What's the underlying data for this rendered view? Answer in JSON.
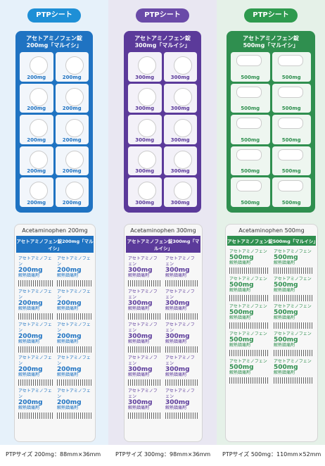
{
  "columns": [
    {
      "badge": "PTPシート",
      "front_title": "アセトアミノフェン錠",
      "front_dose": "200mg「マルイシ」",
      "tablet_label": "200mg",
      "back_header": "Acetaminophen 200mg",
      "back_band": "アセトアミノフェン錠200mg「マルイシ」",
      "back_item_name": "アセトアミノフェン",
      "back_item_dose": "200mg",
      "back_item_use": "解熱鎮痛剤",
      "caption": "PTPサイズ 200mg：88mm×36mm"
    },
    {
      "badge": "PTPシート",
      "front_title": "アセトアミノフェン錠",
      "front_dose": "300mg「マルイシ」",
      "tablet_label": "300mg",
      "back_header": "Acetaminophen 300mg",
      "back_band": "アセトアミノフェン錠300mg「マルイシ」",
      "back_item_name": "アセトアミノフェン",
      "back_item_dose": "300mg",
      "back_item_use": "解熱鎮痛剤",
      "caption": "PTPサイズ 300mg：98mm×36mm"
    },
    {
      "badge": "PTPシート",
      "front_title": "アセトアミノフェン錠",
      "front_dose": "500mg「マルイシ」",
      "tablet_label": "500mg",
      "back_header": "Acetaminophen 500mg",
      "back_band": "アセトアミノフェン錠500mg「マルイシ」",
      "back_item_name": "アセトアミノフェン",
      "back_item_dose": "500mg",
      "back_item_use": "解熱鎮痛剤",
      "caption": "PTPサイズ 500mg：110mm×52mm"
    }
  ]
}
